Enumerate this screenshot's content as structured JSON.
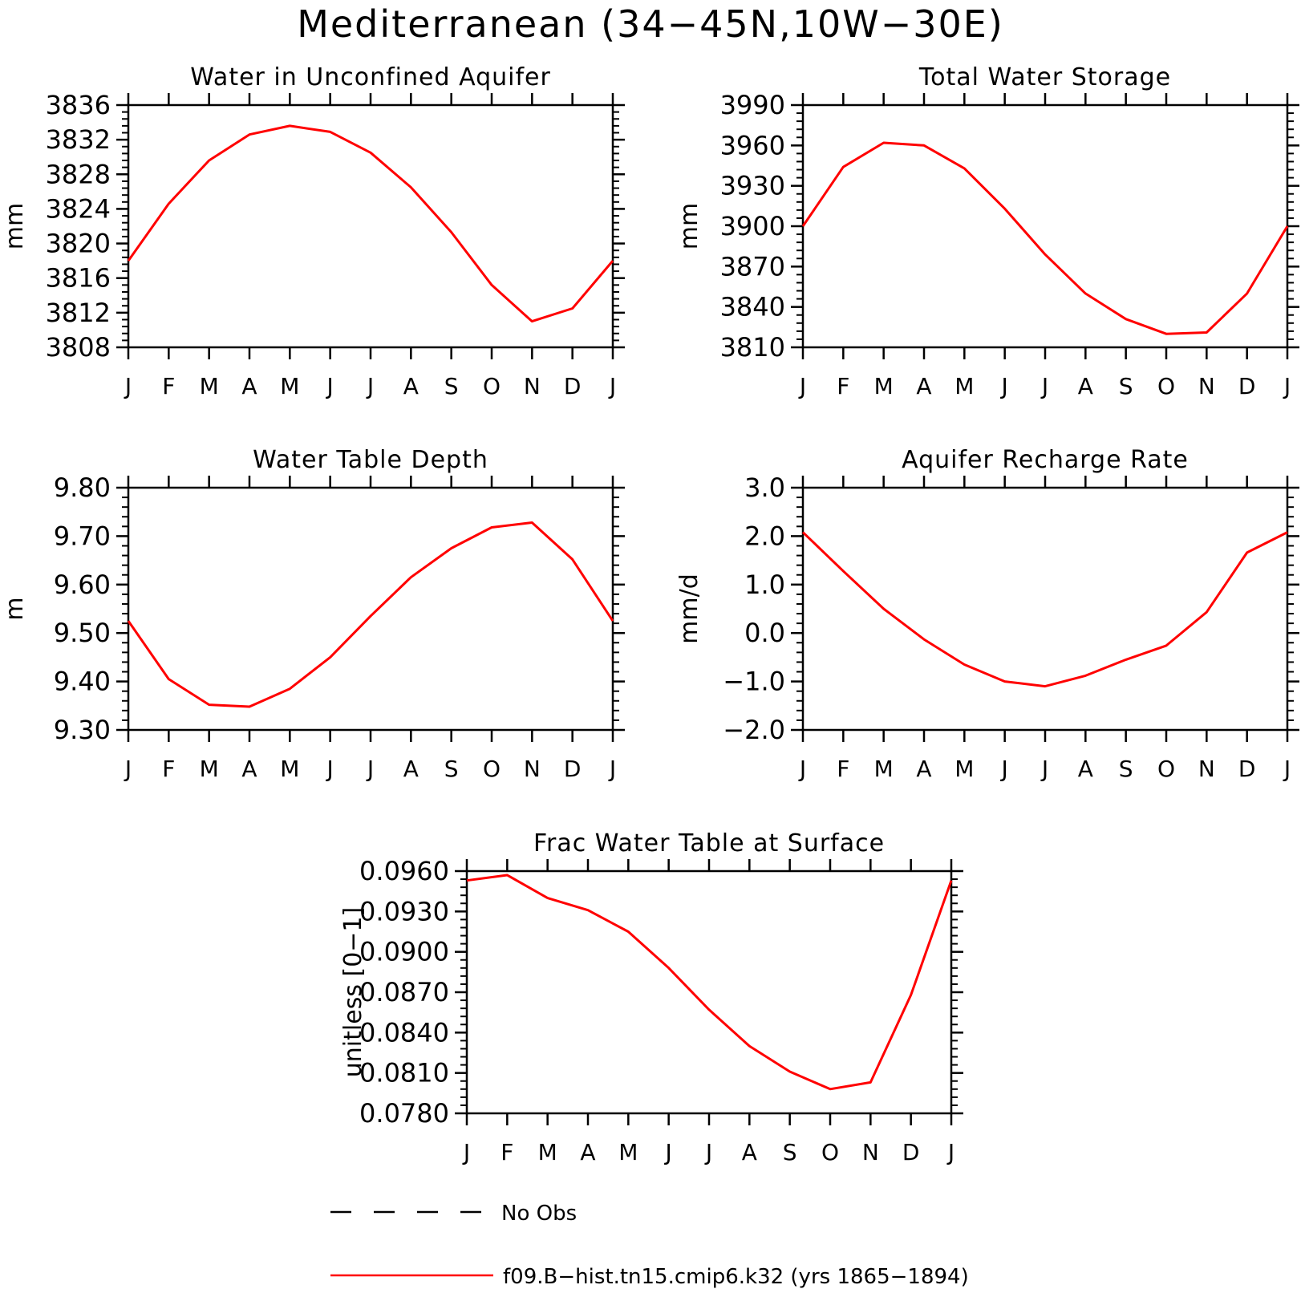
{
  "figure": {
    "title": "Mediterranean (34−45N,10W−30E)"
  },
  "chart_data": [
    {
      "type": "line",
      "title": "Water in Unconfined Aquifer",
      "xlabel": "",
      "ylabel": "mm",
      "x_tick_labels": [
        "J",
        "F",
        "M",
        "A",
        "M",
        "J",
        "J",
        "A",
        "S",
        "O",
        "N",
        "D",
        "J"
      ],
      "ylim": [
        3808,
        3836
      ],
      "y_ticks": [
        3808,
        3812,
        3816,
        3820,
        3824,
        3828,
        3832,
        3836
      ],
      "y_tick_labels": [
        "3808",
        "3812",
        "3816",
        "3820",
        "3824",
        "3828",
        "3832",
        "3836"
      ],
      "series": [
        {
          "name": "f09.B−hist.tn15.cmip6.k32 (yrs 1865−1894)",
          "color": "#ff0000",
          "values": [
            3818.0,
            3824.6,
            3829.6,
            3832.6,
            3833.6,
            3832.9,
            3830.5,
            3826.5,
            3821.3,
            3815.2,
            3811.0,
            3812.5,
            3818.0
          ]
        }
      ]
    },
    {
      "type": "line",
      "title": "Total Water Storage",
      "xlabel": "",
      "ylabel": "mm",
      "x_tick_labels": [
        "J",
        "F",
        "M",
        "A",
        "M",
        "J",
        "J",
        "A",
        "S",
        "O",
        "N",
        "D",
        "J"
      ],
      "ylim": [
        3810,
        3990
      ],
      "y_ticks": [
        3810,
        3840,
        3870,
        3900,
        3930,
        3960,
        3990
      ],
      "y_tick_labels": [
        "3810",
        "3840",
        "3870",
        "3900",
        "3930",
        "3960",
        "3990"
      ],
      "series": [
        {
          "name": "f09.B−hist.tn15.cmip6.k32 (yrs 1865−1894)",
          "color": "#ff0000",
          "values": [
            3900,
            3944,
            3962,
            3960,
            3943,
            3913,
            3879,
            3850,
            3831,
            3820,
            3821,
            3850,
            3900
          ]
        }
      ]
    },
    {
      "type": "line",
      "title": "Water Table Depth",
      "xlabel": "",
      "ylabel": "m",
      "x_tick_labels": [
        "J",
        "F",
        "M",
        "A",
        "M",
        "J",
        "J",
        "A",
        "S",
        "O",
        "N",
        "D",
        "J"
      ],
      "ylim": [
        9.3,
        9.8
      ],
      "y_ticks": [
        9.3,
        9.4,
        9.5,
        9.6,
        9.7,
        9.8
      ],
      "y_tick_labels": [
        "9.30",
        "9.40",
        "9.50",
        "9.60",
        "9.70",
        "9.80"
      ],
      "series": [
        {
          "name": "f09.B−hist.tn15.cmip6.k32 (yrs 1865−1894)",
          "color": "#ff0000",
          "values": [
            9.525,
            9.405,
            9.352,
            9.348,
            9.385,
            9.45,
            9.535,
            9.615,
            9.675,
            9.718,
            9.728,
            9.652,
            9.525
          ]
        }
      ]
    },
    {
      "type": "line",
      "title": "Aquifer Recharge Rate",
      "xlabel": "",
      "ylabel": "mm/d",
      "x_tick_labels": [
        "J",
        "F",
        "M",
        "A",
        "M",
        "J",
        "J",
        "A",
        "S",
        "O",
        "N",
        "D",
        "J"
      ],
      "ylim": [
        -2.0,
        3.0
      ],
      "y_ticks": [
        -2.0,
        -1.0,
        0.0,
        1.0,
        2.0,
        3.0
      ],
      "y_tick_labels": [
        "−2.0",
        "−1.0",
        "0.0",
        "1.0",
        "2.0",
        "3.0"
      ],
      "series": [
        {
          "name": "f09.B−hist.tn15.cmip6.k32 (yrs 1865−1894)",
          "color": "#ff0000",
          "values": [
            2.08,
            1.28,
            0.5,
            -0.13,
            -0.65,
            -1.0,
            -1.1,
            -0.88,
            -0.55,
            -0.26,
            0.43,
            1.66,
            2.08
          ]
        }
      ]
    },
    {
      "type": "line",
      "title": "Frac Water Table at Surface",
      "xlabel": "",
      "ylabel": "unitless [0−1]",
      "x_tick_labels": [
        "J",
        "F",
        "M",
        "A",
        "M",
        "J",
        "J",
        "A",
        "S",
        "O",
        "N",
        "D",
        "J"
      ],
      "ylim": [
        0.078,
        0.096
      ],
      "y_ticks": [
        0.078,
        0.081,
        0.084,
        0.087,
        0.09,
        0.093,
        0.096
      ],
      "y_tick_labels": [
        "0.0780",
        "0.0810",
        "0.0840",
        "0.0870",
        "0.0900",
        "0.0930",
        "0.0960"
      ],
      "series": [
        {
          "name": "f09.B−hist.tn15.cmip6.k32 (yrs 1865−1894)",
          "color": "#ff0000",
          "values": [
            0.0953,
            0.0957,
            0.094,
            0.0931,
            0.0915,
            0.0888,
            0.0857,
            0.083,
            0.0811,
            0.0798,
            0.0803,
            0.0868,
            0.0953
          ]
        }
      ]
    }
  ],
  "legend": {
    "items": [
      {
        "label": "No Obs",
        "style": "dashed",
        "color": "#000000"
      },
      {
        "label": "f09.B−hist.tn15.cmip6.k32 (yrs 1865−1894)",
        "style": "solid",
        "color": "#ff0000"
      }
    ]
  }
}
